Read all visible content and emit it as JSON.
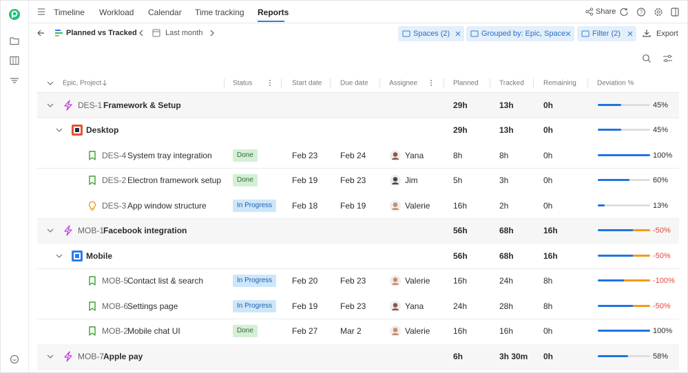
{
  "nav": {
    "tabs": [
      "Timeline",
      "Workload",
      "Calendar",
      "Time tracking",
      "Reports"
    ],
    "active": 4,
    "share": "Share"
  },
  "toolbar": {
    "report": "Planned vs Tracked",
    "period": "Last month",
    "chips": [
      "Spaces (2)",
      "Grouped by: Epic, Space",
      "Filter (2)"
    ],
    "export": "Export"
  },
  "table": {
    "columns": [
      "Epic, Project",
      "Status",
      "Start date",
      "Due date",
      "Assignee",
      "Planned",
      "Tracked",
      "Remaining",
      "Deviation %"
    ],
    "rows": [
      {
        "level": "epic",
        "id": "DES-1",
        "name": "Framework & Setup",
        "planned": "29h",
        "tracked": "13h",
        "remaining": "0h",
        "deviation": "45%"
      },
      {
        "level": "project",
        "icon": "desktop",
        "name": "Desktop",
        "planned": "29h",
        "tracked": "13h",
        "remaining": "0h",
        "deviation": "45%"
      },
      {
        "level": "task",
        "icon": "bookmark",
        "id": "DES-4",
        "name": "System tray integration",
        "status": "Done",
        "start": "Feb 23",
        "due": "Feb 24",
        "assignee": "Yana",
        "planned": "8h",
        "tracked": "8h",
        "remaining": "0h",
        "deviation": "100%"
      },
      {
        "level": "task",
        "icon": "bookmark",
        "id": "DES-2",
        "name": "Electron framework setup",
        "status": "Done",
        "start": "Feb 19",
        "due": "Feb 23",
        "assignee": "Jim",
        "planned": "5h",
        "tracked": "3h",
        "remaining": "0h",
        "deviation": "60%"
      },
      {
        "level": "task",
        "icon": "idea",
        "id": "DES-3",
        "name": "App window structure",
        "status": "In Progress",
        "start": "Feb 18",
        "due": "Feb 19",
        "assignee": "Valerie",
        "planned": "16h",
        "tracked": "2h",
        "remaining": "0h",
        "deviation": "13%"
      },
      {
        "level": "epic",
        "id": "MOB-1",
        "name": "Facebook integration",
        "planned": "56h",
        "tracked": "68h",
        "remaining": "16h",
        "deviation": "-50%"
      },
      {
        "level": "project",
        "icon": "mobile",
        "name": "Mobile",
        "planned": "56h",
        "tracked": "68h",
        "remaining": "16h",
        "deviation": "-50%"
      },
      {
        "level": "task",
        "icon": "bookmark",
        "id": "MOB-5",
        "name": "Contact list & search",
        "status": "In Progress",
        "start": "Feb 20",
        "due": "Feb 23",
        "assignee": "Valerie",
        "planned": "16h",
        "tracked": "24h",
        "remaining": "8h",
        "deviation": "-100%"
      },
      {
        "level": "task",
        "icon": "bookmark",
        "id": "MOB-6",
        "name": "Settings page",
        "status": "In Progress",
        "start": "Feb 19",
        "due": "Feb 23",
        "assignee": "Yana",
        "planned": "24h",
        "tracked": "28h",
        "remaining": "8h",
        "deviation": "-50%"
      },
      {
        "level": "task",
        "icon": "bookmark",
        "id": "MOB-2",
        "name": "Mobile chat UI",
        "status": "Done",
        "start": "Feb 27",
        "due": "Mar 2",
        "assignee": "Valerie",
        "planned": "16h",
        "tracked": "16h",
        "remaining": "0h",
        "deviation": "100%"
      },
      {
        "level": "epic",
        "id": "MOB-7",
        "name": "Apple pay",
        "planned": "6h",
        "tracked": "3h 30m",
        "remaining": "0h",
        "deviation": "58%"
      }
    ]
  }
}
